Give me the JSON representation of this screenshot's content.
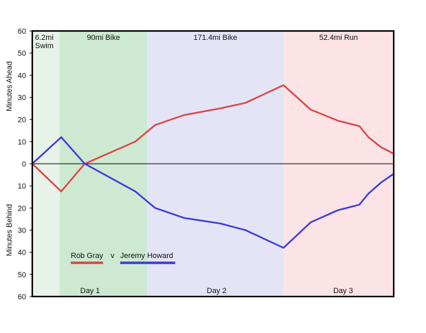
{
  "chart_data": {
    "type": "line",
    "ylabel_top": "Minutes Ahead",
    "ylabel_bottom": "Minutes Behind",
    "xlim": [
      0,
      100
    ],
    "ylim": [
      -60,
      60
    ],
    "grid": false,
    "y_ticks": [
      {
        "value": 60,
        "label": "60"
      },
      {
        "value": 50,
        "label": "50"
      },
      {
        "value": 40,
        "label": "40"
      },
      {
        "value": 30,
        "label": "30"
      },
      {
        "value": 20,
        "label": "20"
      },
      {
        "value": 10,
        "label": "10"
      },
      {
        "value": 0,
        "label": "0"
      },
      {
        "value": -10,
        "label": "10"
      },
      {
        "value": -20,
        "label": "20"
      },
      {
        "value": -30,
        "label": "30"
      },
      {
        "value": -40,
        "label": "40"
      },
      {
        "value": -50,
        "label": "50"
      },
      {
        "value": -60,
        "label": "60"
      }
    ],
    "stages": [
      {
        "label": "6.2mi",
        "label2": "Swim",
        "start": 0,
        "end": 7.6,
        "color": "#e7f2e9"
      },
      {
        "label": "90mi Bike",
        "start": 7.6,
        "end": 31.8,
        "color": "#cde9d2"
      },
      {
        "label": "171.4mi Bike",
        "start": 31.8,
        "end": 69.5,
        "color": "#e4e4f7"
      },
      {
        "label": "52.4mi Run",
        "start": 69.5,
        "end": 100,
        "color": "#fbe3e6"
      }
    ],
    "days": [
      {
        "label": "Day 1",
        "center": 16
      },
      {
        "label": "Day 2",
        "center": 51
      },
      {
        "label": "Day 3",
        "center": 86
      }
    ],
    "legend": {
      "placement": "bottom-left",
      "separator": "v"
    },
    "series": [
      {
        "name": "Rob Gray",
        "color": "#dd4444",
        "x": [
          0,
          8,
          14.5,
          28.5,
          34,
          42,
          52,
          59,
          69.5,
          77,
          84.5,
          90.5,
          93,
          96.5,
          100
        ],
        "y": [
          0,
          -12.5,
          0,
          10,
          17.5,
          22,
          25,
          27.5,
          35.5,
          24.5,
          19.5,
          17,
          12,
          7.5,
          4.5
        ]
      },
      {
        "name": "Jeremy Howard",
        "color": "#3a3ae0",
        "x": [
          0,
          8,
          14.5,
          28.5,
          34,
          42,
          52,
          59,
          69.5,
          77,
          84.5,
          90.5,
          93,
          96.5,
          100
        ],
        "y": [
          0,
          12,
          0,
          -12.5,
          -20,
          -24.5,
          -27,
          -30,
          -38,
          -26.5,
          -21,
          -18.5,
          -13.5,
          -8.5,
          -4.5
        ]
      }
    ]
  }
}
